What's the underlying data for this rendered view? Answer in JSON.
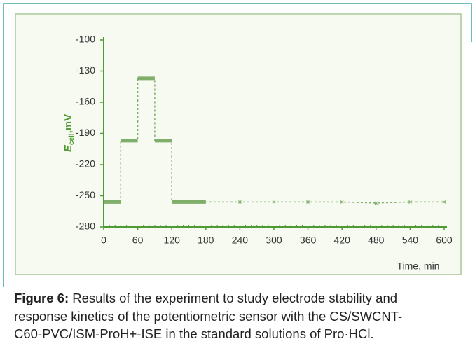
{
  "chart_data": {
    "type": "line",
    "y_label": {
      "symbol": "E",
      "subscript": "cell",
      "unit": ",mV"
    },
    "x_label": "Time, min",
    "x": [
      0,
      30,
      30,
      60,
      60,
      90,
      90,
      120,
      120,
      180,
      240,
      300,
      360,
      420,
      480,
      540,
      600
    ],
    "series": [
      {
        "color": "#7fae6a",
        "values": [
          -256,
          -256,
          -197,
          -197,
          -137,
          -137,
          -197,
          -197,
          -256,
          -256,
          -256,
          -256,
          -256,
          -256,
          -257,
          -256,
          -256
        ]
      }
    ],
    "xlim": [
      0,
      600
    ],
    "xticks": [
      0,
      60,
      120,
      180,
      240,
      300,
      360,
      420,
      480,
      540,
      600
    ],
    "ylim": [
      -280,
      -100
    ],
    "yticks": [
      -100,
      -130,
      -160,
      -190,
      -220,
      -250,
      -280
    ],
    "axis_color": "#4f9a32"
  },
  "caption": {
    "label": "Figure 6:",
    "lines": [
      " Results of the experiment to study electrode stability and",
      "response kinetics of the potentiometric sensor with the CS/SWCNT-",
      "C60-PVC/ISM-ProH+-ISE in the standard solutions of Pro·HCl."
    ]
  }
}
